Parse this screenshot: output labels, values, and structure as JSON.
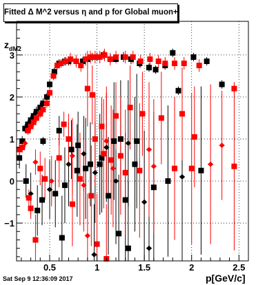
{
  "title_pre": "Fitted ",
  "title_sym": "Δ",
  "title_post": " M^2 versus η and p for Global muon+",
  "ylabel_main": "z",
  "ylabel_sub": "dM2",
  "xlabel": "p[GeV/c]",
  "timestamp": "Sat Sep  9 12:36:09 2017",
  "colors": {
    "black_series": "#000000",
    "red_series": "#ff0000",
    "grid": "#000000"
  },
  "chart_data": {
    "type": "scatter",
    "grid": true,
    "xlim": [
      0.15,
      2.6
    ],
    "ylim": [
      -1.9,
      3.8
    ],
    "xticks": [
      0.5,
      1,
      1.5,
      2,
      2.5
    ],
    "xtick_labels": [
      "0.5",
      "1",
      "1.5",
      "2",
      "2.5"
    ],
    "yticks": [
      -1,
      0,
      1,
      2,
      3
    ],
    "ytick_labels": [
      "−1",
      "0",
      "1",
      "2",
      "3"
    ],
    "series": [
      {
        "color": "black",
        "points": [
          [
            0.18,
            0.55,
            0.25
          ],
          [
            0.21,
            0.95,
            0.12
          ],
          [
            0.24,
            1.25,
            0.1
          ],
          [
            0.27,
            1.35,
            0.1
          ],
          [
            0.3,
            1.45,
            0.1
          ],
          [
            0.33,
            1.55,
            0.1
          ],
          [
            0.36,
            1.65,
            0.12
          ],
          [
            0.4,
            1.75,
            0.12
          ],
          [
            0.43,
            1.85,
            0.12
          ],
          [
            0.47,
            2.0,
            0.1
          ],
          [
            0.5,
            2.3,
            0.1
          ],
          [
            0.55,
            2.6,
            0.1
          ],
          [
            0.6,
            2.8,
            0.1
          ],
          [
            0.66,
            2.85,
            0.1
          ],
          [
            0.7,
            2.85,
            0.1
          ],
          [
            0.78,
            2.85,
            0.1
          ],
          [
            0.85,
            2.85,
            0.1
          ],
          [
            0.9,
            2.9,
            0.1
          ],
          [
            0.95,
            2.95,
            0.1
          ],
          [
            1.0,
            2.95,
            0.1
          ],
          [
            1.07,
            3.0,
            0.1
          ],
          [
            1.14,
            2.9,
            0.1
          ],
          [
            1.2,
            2.9,
            0.1
          ],
          [
            1.28,
            2.95,
            0.12
          ],
          [
            1.36,
            2.9,
            0.12
          ],
          [
            1.45,
            2.8,
            0.1
          ],
          [
            1.55,
            2.7,
            0.1
          ],
          [
            1.62,
            2.65,
            0.1
          ],
          [
            1.72,
            2.75,
            0.1
          ],
          [
            1.8,
            3.05,
            0.1
          ],
          [
            1.86,
            2.15,
            0.1
          ],
          [
            2.02,
            2.95,
            0.1
          ],
          [
            2.16,
            2.85,
            0.1
          ],
          [
            2.32,
            2.3,
            0.1
          ],
          [
            0.43,
            0.95,
            0.1
          ],
          [
            0.6,
            1.2,
            0.35
          ],
          [
            0.73,
            0.75,
            0.7
          ],
          [
            0.8,
            0.85,
            0.8
          ],
          [
            0.86,
            0.65,
            0.9
          ],
          [
            0.93,
            0.4,
            1.0
          ],
          [
            1.03,
            0.4,
            1.2
          ],
          [
            1.1,
            0.8,
            1.3
          ],
          [
            1.18,
            0.95,
            1.4
          ],
          [
            1.25,
            1.0,
            1.4
          ],
          [
            1.33,
            0.9,
            1.5
          ],
          [
            1.42,
            0.95,
            1.6
          ],
          [
            0.25,
            0.0,
            0.4
          ],
          [
            0.3,
            -0.3,
            0.5
          ],
          [
            0.37,
            -0.7,
            0.6
          ],
          [
            0.42,
            -0.45,
            0.6
          ],
          [
            0.5,
            -0.2,
            0.7
          ],
          [
            0.56,
            -0.3,
            0.8
          ],
          [
            0.66,
            -0.1,
            0.9
          ],
          [
            0.7,
            0.4,
            1.0
          ],
          [
            0.79,
            0.25,
            1.1
          ],
          [
            0.88,
            0.3,
            1.2
          ],
          [
            0.98,
            0.2,
            1.2
          ],
          [
            1.05,
            0.55,
            1.3
          ],
          [
            1.12,
            -0.35,
            1.4
          ],
          [
            1.2,
            0.0,
            1.5
          ],
          [
            1.3,
            -0.45,
            1.6
          ],
          [
            1.4,
            0.4,
            1.6
          ],
          [
            1.5,
            -0.5,
            1.7
          ],
          [
            1.6,
            -0.15,
            1.8
          ],
          [
            1.75,
            0.0,
            1.8
          ],
          [
            1.9,
            0.1,
            2.0
          ],
          [
            2.1,
            0.25,
            2.0
          ],
          [
            0.63,
            -1.35,
            1.0
          ],
          [
            0.97,
            -1.75,
            1.2
          ],
          [
            1.23,
            -1.25,
            1.4
          ],
          [
            1.33,
            -1.6,
            1.6
          ],
          [
            1.55,
            -1.6,
            1.6
          ]
        ]
      },
      {
        "color": "red",
        "points": [
          [
            0.18,
            0.75,
            0.15
          ],
          [
            0.21,
            0.8,
            0.12
          ],
          [
            0.24,
            0.9,
            0.1
          ],
          [
            0.27,
            1.2,
            0.1
          ],
          [
            0.3,
            1.3,
            0.1
          ],
          [
            0.33,
            1.4,
            0.1
          ],
          [
            0.36,
            1.5,
            0.1
          ],
          [
            0.4,
            1.6,
            0.1
          ],
          [
            0.43,
            1.7,
            0.1
          ],
          [
            0.47,
            1.85,
            0.1
          ],
          [
            0.5,
            2.1,
            0.1
          ],
          [
            0.54,
            2.5,
            0.1
          ],
          [
            0.58,
            2.75,
            0.1
          ],
          [
            0.62,
            2.8,
            0.1
          ],
          [
            0.67,
            2.85,
            0.1
          ],
          [
            0.72,
            2.9,
            0.15
          ],
          [
            0.78,
            2.85,
            0.15
          ],
          [
            0.83,
            2.75,
            0.15
          ],
          [
            0.88,
            2.9,
            0.15
          ],
          [
            0.93,
            2.95,
            0.15
          ],
          [
            0.98,
            2.95,
            0.15
          ],
          [
            1.03,
            2.95,
            0.15
          ],
          [
            1.08,
            3.0,
            0.15
          ],
          [
            1.14,
            2.9,
            0.15
          ],
          [
            1.2,
            2.95,
            0.15
          ],
          [
            1.3,
            2.95,
            0.15
          ],
          [
            1.38,
            2.95,
            0.15
          ],
          [
            1.46,
            2.85,
            0.15
          ],
          [
            1.56,
            2.9,
            0.15
          ],
          [
            1.65,
            2.85,
            0.15
          ],
          [
            1.72,
            2.8,
            0.15
          ],
          [
            1.82,
            2.8,
            0.15
          ],
          [
            1.92,
            2.8,
            0.15
          ],
          [
            2.08,
            2.75,
            0.15
          ],
          [
            2.45,
            2.2,
            0.15
          ],
          [
            0.9,
            2.2,
            0.9
          ],
          [
            0.95,
            2.05,
            0.7
          ],
          [
            1.05,
            1.3,
            0.7
          ],
          [
            1.2,
            1.55,
            0.8
          ],
          [
            1.35,
            1.75,
            1.0
          ],
          [
            1.48,
            1.6,
            1.0
          ],
          [
            1.68,
            1.5,
            1.1
          ],
          [
            1.9,
            1.6,
            1.1
          ],
          [
            2.03,
            1.05,
            1.2
          ],
          [
            2.32,
            0.85,
            1.3
          ],
          [
            0.65,
            1.35,
            0.3
          ],
          [
            0.7,
            1.0,
            0.6
          ],
          [
            0.74,
            0.6,
            0.9
          ],
          [
            0.82,
            0.05,
            1.1
          ],
          [
            0.98,
            1.0,
            1.1
          ],
          [
            1.1,
            0.95,
            1.3
          ],
          [
            1.15,
            0.5,
            1.3
          ],
          [
            1.25,
            0.6,
            1.4
          ],
          [
            1.55,
            0.75,
            1.6
          ],
          [
            0.28,
            -0.4,
            0.2
          ],
          [
            0.3,
            -0.65,
            0.25
          ],
          [
            0.35,
            0.45,
            0.3
          ],
          [
            0.4,
            0.3,
            0.4
          ],
          [
            0.45,
            0.05,
            0.5
          ],
          [
            0.52,
            0.0,
            0.6
          ],
          [
            0.6,
            0.55,
            0.7
          ],
          [
            0.74,
            -0.55,
            1.0
          ],
          [
            0.86,
            -0.1,
            1.1
          ],
          [
            0.94,
            -0.35,
            1.2
          ],
          [
            1.07,
            0.65,
            1.3
          ],
          [
            1.17,
            0.3,
            1.4
          ],
          [
            1.3,
            0.2,
            1.5
          ],
          [
            1.45,
            0.25,
            1.6
          ],
          [
            1.6,
            0.35,
            1.6
          ],
          [
            1.82,
            0.3,
            1.7
          ],
          [
            2.0,
            0.3,
            1.8
          ],
          [
            2.2,
            0.4,
            1.9
          ],
          [
            2.45,
            0.35,
            2.0
          ],
          [
            0.35,
            -1.4,
            0.6
          ],
          [
            0.9,
            -1.3,
            1.0
          ],
          [
            1.0,
            -1.5,
            1.2
          ],
          [
            1.1,
            -1.85,
            1.3
          ]
        ]
      }
    ]
  }
}
